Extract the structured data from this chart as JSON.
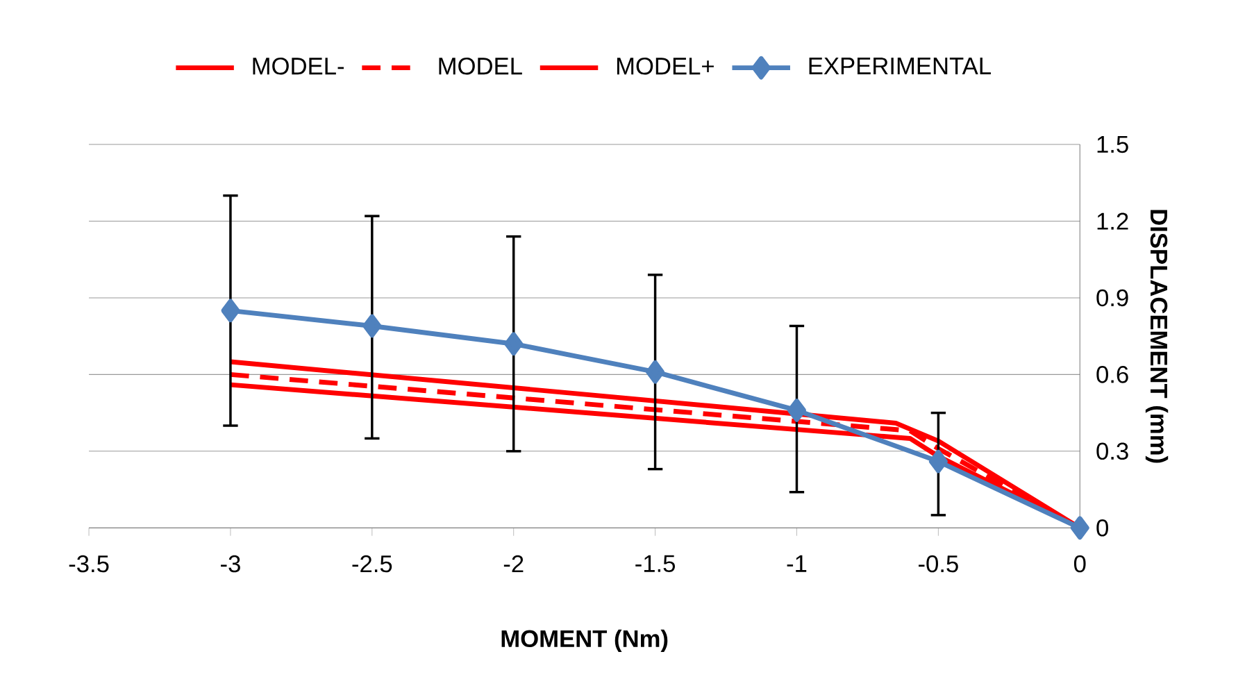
{
  "chart_data": {
    "type": "line",
    "xlabel": "MOMENT (Nm)",
    "ylabel": "DISPLACEMENT (mm)",
    "xlim": [
      -3.5,
      0
    ],
    "xticks": [
      -3.5,
      -3,
      -2.5,
      -2,
      -1.5,
      -1,
      -0.5,
      0
    ],
    "ylim": [
      0,
      1.5
    ],
    "yticks": [
      0,
      0.3,
      0.6,
      0.9,
      1.2,
      1.5
    ],
    "grid": "y",
    "legend": "top",
    "series": [
      {
        "name": "MODEL-",
        "color": "#ff0000",
        "line_style": "solid",
        "marker": "none",
        "x": [
          -3,
          -0.6,
          -0.5,
          0
        ],
        "values": [
          0.56,
          0.35,
          0.28,
          0
        ]
      },
      {
        "name": "MODEL",
        "color": "#ff0000",
        "line_style": "dashed",
        "marker": "none",
        "x": [
          -3,
          -0.6,
          -0.5,
          0
        ],
        "values": [
          0.6,
          0.38,
          0.31,
          0
        ]
      },
      {
        "name": "MODEL+",
        "color": "#ff0000",
        "line_style": "solid",
        "marker": "none",
        "x": [
          -3,
          -0.65,
          -0.5,
          0
        ],
        "values": [
          0.65,
          0.41,
          0.34,
          0
        ]
      },
      {
        "name": "EXPERIMENTAL",
        "color": "#4f81bd",
        "line_style": "solid",
        "marker": "diamond",
        "x": [
          -3,
          -2.5,
          -2,
          -1.5,
          -1,
          -0.5,
          0
        ],
        "values": [
          0.85,
          0.79,
          0.72,
          0.61,
          0.46,
          0.26,
          0
        ],
        "errors": [
          [
            0.4,
            1.3
          ],
          [
            0.35,
            1.22
          ],
          [
            0.3,
            1.14
          ],
          [
            0.23,
            0.99
          ],
          [
            0.14,
            0.79
          ],
          [
            0.05,
            0.45
          ],
          null
        ]
      }
    ]
  }
}
